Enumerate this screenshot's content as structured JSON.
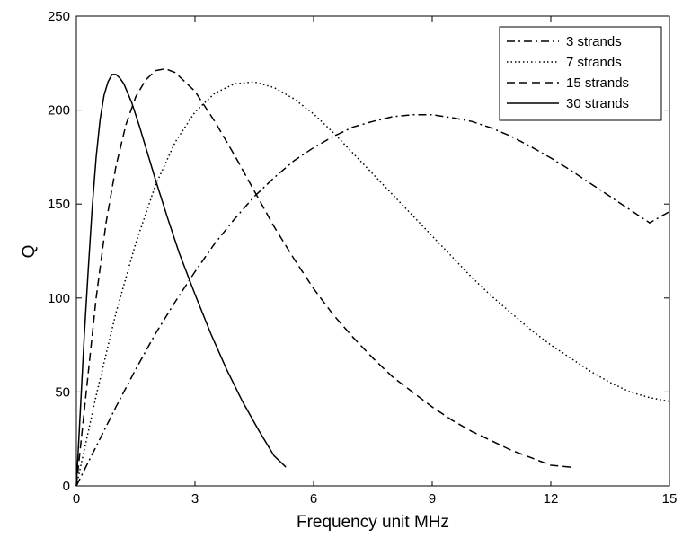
{
  "chart_data": {
    "type": "line",
    "xlabel": "Frequency unit MHz",
    "ylabel": "Q",
    "xlim": [
      0,
      15
    ],
    "ylim": [
      0,
      250
    ],
    "xticks": [
      0,
      3,
      6,
      9,
      12,
      15
    ],
    "yticks": [
      0,
      50,
      100,
      150,
      200,
      250
    ],
    "grid": false,
    "legend_position": "top-right",
    "series": [
      {
        "name": "3 strands",
        "style": "dashdot",
        "x": [
          0,
          0.5,
          1,
          1.5,
          2,
          2.5,
          3,
          3.5,
          4,
          4.5,
          5,
          5.5,
          6,
          6.5,
          7,
          7.5,
          8,
          8.5,
          9,
          9.5,
          10,
          10.5,
          11,
          11.5,
          12,
          12.5,
          13,
          13.5,
          14,
          14.5,
          15
        ],
        "y": [
          0,
          21,
          42,
          62,
          81,
          98,
          114,
          129,
          142,
          154,
          164,
          173,
          180,
          186,
          191,
          194,
          196.5,
          197.5,
          197.5,
          196,
          194,
          190.5,
          186,
          180.5,
          174.5,
          168,
          161,
          154,
          147,
          140,
          146
        ]
      },
      {
        "name": "7 strands",
        "style": "dotted",
        "x": [
          0,
          0.5,
          1,
          1.5,
          2,
          2.5,
          3,
          3.5,
          4,
          4.5,
          5,
          5.5,
          6,
          6.5,
          7,
          7.5,
          8,
          8.5,
          9,
          9.5,
          10,
          10.5,
          11,
          11.5,
          12,
          12.5,
          13,
          13.5,
          14,
          14.5,
          15
        ],
        "y": [
          0,
          48,
          92,
          129,
          160,
          183,
          199,
          209,
          214,
          215,
          212,
          206,
          198,
          188,
          177,
          166,
          155,
          144,
          133,
          122,
          111,
          101,
          92,
          83,
          75,
          68,
          61,
          55,
          50,
          47,
          45
        ]
      },
      {
        "name": "15 strands",
        "style": "dashed",
        "x": [
          0,
          0.25,
          0.5,
          0.75,
          1,
          1.25,
          1.5,
          1.75,
          2,
          2.25,
          2.5,
          3,
          3.5,
          4,
          4.5,
          5,
          5.5,
          6,
          6.5,
          7,
          7.5,
          8,
          8.5,
          9,
          9.5,
          10,
          10.5,
          11,
          11.5,
          12,
          12.5
        ],
        "y": [
          0,
          50,
          100,
          140,
          170,
          192,
          207,
          216,
          221,
          222,
          220,
          210,
          194,
          176,
          157,
          138,
          121,
          105,
          91,
          79,
          68,
          58,
          50,
          42,
          35,
          29,
          24,
          19,
          15,
          11,
          10
        ]
      },
      {
        "name": "30 strands",
        "style": "solid",
        "x": [
          0,
          0.1,
          0.2,
          0.3,
          0.4,
          0.5,
          0.6,
          0.7,
          0.8,
          0.9,
          1.0,
          1.1,
          1.2,
          1.4,
          1.6,
          1.8,
          2.0,
          2.3,
          2.6,
          3.0,
          3.4,
          3.8,
          4.2,
          4.6,
          5.0,
          5.3
        ],
        "y": [
          0,
          40,
          80,
          115,
          148,
          175,
          195,
          208,
          215,
          219,
          219,
          217,
          214,
          204,
          191,
          177,
          163,
          143,
          124,
          102,
          81,
          62,
          45,
          30,
          16,
          10
        ]
      }
    ]
  }
}
